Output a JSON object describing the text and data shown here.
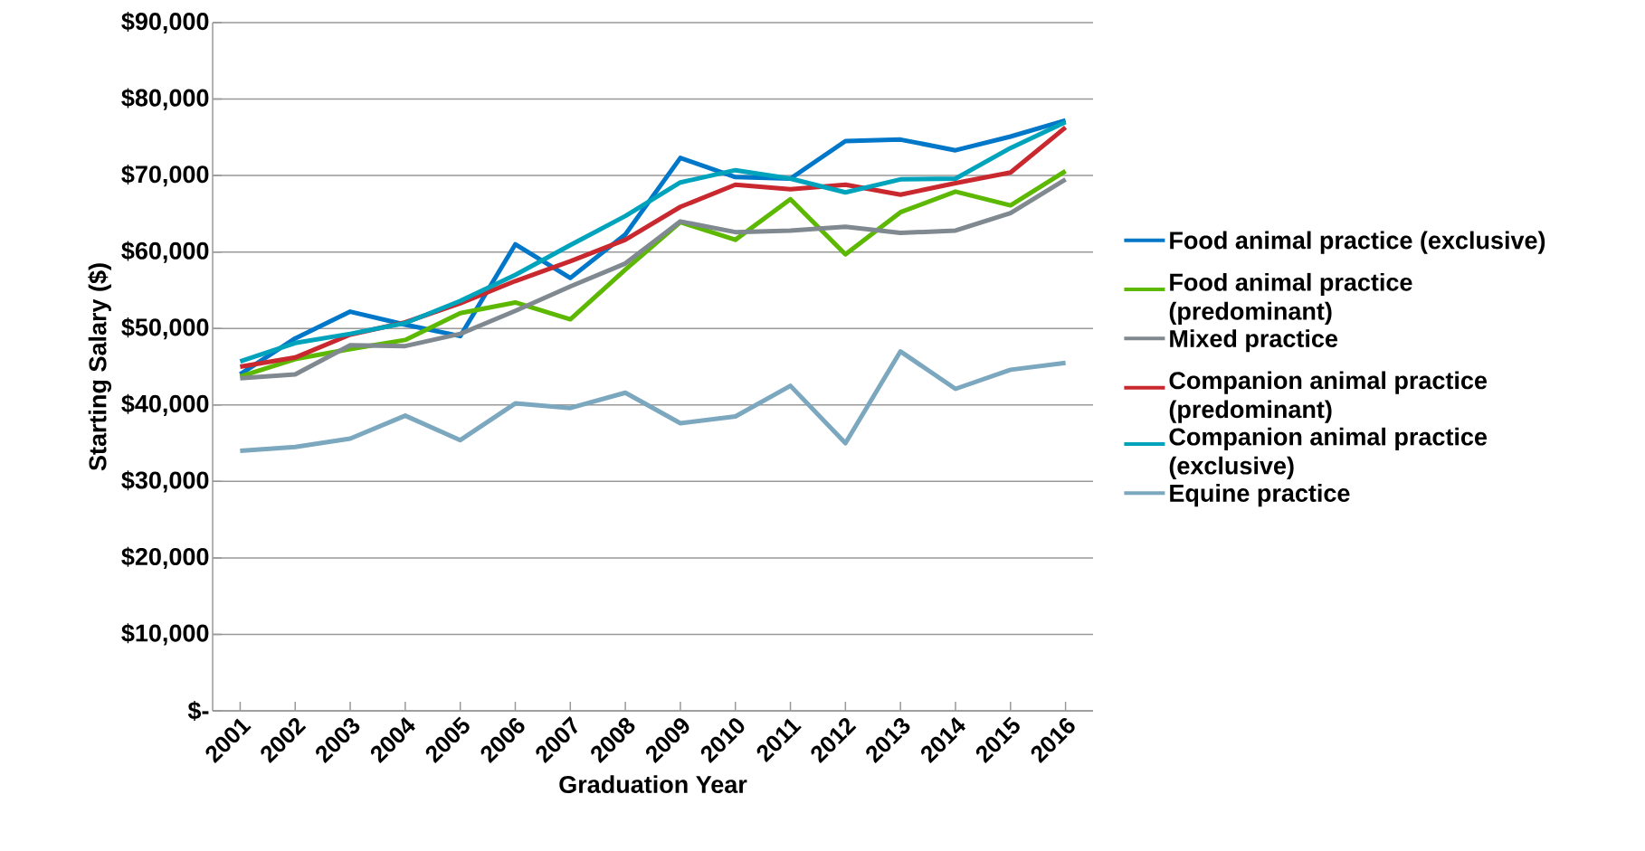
{
  "chart_data": {
    "type": "line",
    "xlabel": "Graduation Year",
    "ylabel": "Starting Salary ($)",
    "categories": [
      "2001",
      "2002",
      "2003",
      "2004",
      "2005",
      "2006",
      "2007",
      "2008",
      "2009",
      "2010",
      "2011",
      "2012",
      "2013",
      "2014",
      "2015",
      "2016"
    ],
    "series": [
      {
        "name": "Food animal practice (exclusive)",
        "color": "#0077c8",
        "values": [
          44000,
          48700,
          52200,
          50500,
          49000,
          61000,
          56600,
          62300,
          72300,
          69800,
          69600,
          74500,
          74700,
          73300,
          75100,
          77200
        ]
      },
      {
        "name": "Food animal practice (predominant)",
        "color": "#5cb800",
        "values": [
          43700,
          46000,
          47300,
          48500,
          52000,
          53400,
          51200,
          57700,
          63900,
          61600,
          66900,
          59700,
          65200,
          67900,
          66100,
          70600
        ]
      },
      {
        "name": "Mixed practice",
        "color": "#808890",
        "values": [
          43500,
          44000,
          47800,
          47700,
          49300,
          52300,
          55500,
          58500,
          64000,
          62600,
          62800,
          63300,
          62500,
          62800,
          65100,
          69500
        ]
      },
      {
        "name": "Companion animal practice (predominant)",
        "color": "#c8282e",
        "values": [
          45000,
          46200,
          49200,
          50800,
          53300,
          56200,
          58800,
          61600,
          65900,
          68800,
          68200,
          68800,
          67500,
          69000,
          70400,
          76300
        ]
      },
      {
        "name": "Companion animal practice (exclusive)",
        "color": "#00a3bc",
        "values": [
          45700,
          48100,
          49300,
          50700,
          53600,
          57000,
          60900,
          64700,
          69100,
          70700,
          69600,
          67800,
          69500,
          69600,
          73600,
          77000
        ]
      },
      {
        "name": "Equine practice",
        "color": "#7ba7bf",
        "values": [
          34000,
          34500,
          35600,
          38600,
          35400,
          40200,
          39600,
          41600,
          37600,
          38500,
          42500,
          35000,
          47000,
          42100,
          44600,
          45500
        ]
      }
    ],
    "ylim": [
      0,
      90000
    ],
    "yticks": [
      {
        "value": 0,
        "label": "$-"
      },
      {
        "value": 10000,
        "label": "$10,000"
      },
      {
        "value": 20000,
        "label": "$20,000"
      },
      {
        "value": 30000,
        "label": "$30,000"
      },
      {
        "value": 40000,
        "label": "$40,000"
      },
      {
        "value": 50000,
        "label": "$50,000"
      },
      {
        "value": 60000,
        "label": "$60,000"
      },
      {
        "value": 70000,
        "label": "$70,000"
      },
      {
        "value": 80000,
        "label": "$80,000"
      },
      {
        "value": 90000,
        "label": "$90,000"
      }
    ],
    "grid": "y",
    "legend": "right",
    "marker": "none",
    "line_style": "solid"
  }
}
